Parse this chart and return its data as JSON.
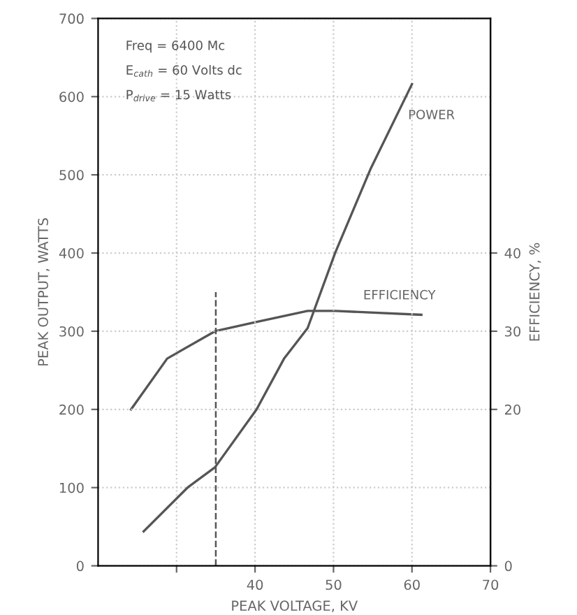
{
  "chart_data": {
    "type": "line",
    "xlabel": "PEAK VOLTAGE, KV",
    "ylabel": "PEAK OUTPUT, WATTS",
    "y2label": "EFFICIENCY, %",
    "xlim": [
      20,
      70
    ],
    "xticks": [
      {
        "value": 30,
        "label": null
      },
      40,
      50,
      60,
      70
    ],
    "ylim": [
      0,
      700
    ],
    "yticks": [
      0,
      100,
      200,
      300,
      400,
      500,
      600,
      700
    ],
    "y2lim": [
      0,
      70
    ],
    "y2ticks": [
      0,
      20,
      30,
      40
    ],
    "grid": true,
    "series": [
      {
        "name": "POWER",
        "color": "#555555",
        "x": [
          25.8,
          31.4,
          34.9,
          40.2,
          43.7,
          46.7,
          50.2,
          54.7,
          60.0
        ],
        "values": [
          44,
          100,
          126,
          200,
          265,
          304,
          400,
          507,
          616
        ]
      },
      {
        "name": "EFFICIENCY",
        "color": "#555555",
        "axis": "y2",
        "x": [
          24.2,
          28.8,
          34.9,
          40.2,
          46.7,
          50.2,
          61.2
        ],
        "values": [
          20,
          26.5,
          30,
          31.2,
          32.6,
          32.6,
          32.1
        ]
      }
    ],
    "ref_lines": [
      {
        "axis": "x",
        "value": 35,
        "label": null,
        "color": "#555555",
        "line_style": "dashed"
      }
    ],
    "annotations": [
      "Freq = 6400 Mc",
      "E$_{cath}$ = 60 Volts dc",
      "P$_{drive}$ = 15 Watts"
    ]
  }
}
